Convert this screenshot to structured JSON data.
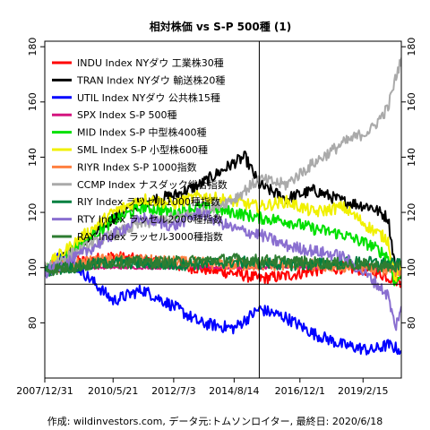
{
  "chart_data": {
    "type": "line",
    "title": "相対株価 vs S-P 500種 (1)",
    "caption": "作成: wildinvestors.com, データ元:トムソンロイター, 最終日: 2020/6/18",
    "x_tick_labels": [
      "2007/12/31",
      "2010/5/21",
      "2012/7/3",
      "2014/8/14",
      "2016/12/1",
      "2019/2/15"
    ],
    "x_tick_dates": [
      "2007-12-31",
      "2010-05-21",
      "2012-07-03",
      "2014-08-14",
      "2016-12-01",
      "2019-02-15"
    ],
    "x_range": [
      "2007-12-31",
      "2020-06-18"
    ],
    "ylim": [
      60,
      182
    ],
    "y_ticks": [
      80,
      100,
      120,
      140,
      160,
      180
    ],
    "hline": 94,
    "vline": "2015-07-01",
    "legend": "top-left",
    "series": [
      {
        "name": "INDU Index NYダウ 工業株30種",
        "color": "#ff0000",
        "points": [
          [
            "2007-12-31",
            98
          ],
          [
            "2009-03-01",
            102
          ],
          [
            "2010-05-21",
            104
          ],
          [
            "2012-07-03",
            101
          ],
          [
            "2014-08-14",
            98
          ],
          [
            "2015-07-01",
            96
          ],
          [
            "2016-06-01",
            97
          ],
          [
            "2017-06-01",
            99
          ],
          [
            "2018-06-01",
            100
          ],
          [
            "2019-06-01",
            99
          ],
          [
            "2020-03-01",
            96
          ],
          [
            "2020-06-18",
            95
          ]
        ]
      },
      {
        "name": "TRAN Index NYダウ 輸送株20種",
        "color": "#000000",
        "points": [
          [
            "2007-12-31",
            99
          ],
          [
            "2009-03-01",
            107
          ],
          [
            "2010-05-21",
            118
          ],
          [
            "2011-06-01",
            124
          ],
          [
            "2012-07-03",
            126
          ],
          [
            "2013-06-01",
            130
          ],
          [
            "2014-08-14",
            138
          ],
          [
            "2015-01-01",
            140
          ],
          [
            "2015-07-01",
            130
          ],
          [
            "2016-06-01",
            125
          ],
          [
            "2017-06-01",
            128
          ],
          [
            "2018-06-01",
            124
          ],
          [
            "2019-06-01",
            122
          ],
          [
            "2020-01-01",
            118
          ],
          [
            "2020-04-01",
            100
          ],
          [
            "2020-06-18",
            98
          ]
        ]
      },
      {
        "name": "UTIL Index NYダウ 公共株15種",
        "color": "#0000ff",
        "points": [
          [
            "2007-12-31",
            98
          ],
          [
            "2008-08-01",
            105
          ],
          [
            "2009-03-01",
            100
          ],
          [
            "2010-05-21",
            88
          ],
          [
            "2011-06-01",
            92
          ],
          [
            "2012-07-03",
            86
          ],
          [
            "2013-06-01",
            80
          ],
          [
            "2014-08-14",
            78
          ],
          [
            "2015-07-01",
            85
          ],
          [
            "2016-06-01",
            82
          ],
          [
            "2017-06-01",
            76
          ],
          [
            "2018-06-01",
            72
          ],
          [
            "2019-06-01",
            70
          ],
          [
            "2020-01-01",
            72
          ],
          [
            "2020-06-18",
            70
          ]
        ]
      },
      {
        "name": "SPX Index S-P 500種",
        "color": "#d4157f",
        "points": [
          [
            "2007-12-31",
            100
          ],
          [
            "2020-06-18",
            100
          ]
        ]
      },
      {
        "name": "MID Index S-P 中型株400種",
        "color": "#00e000",
        "points": [
          [
            "2007-12-31",
            99
          ],
          [
            "2009-03-01",
            108
          ],
          [
            "2010-05-21",
            117
          ],
          [
            "2011-06-01",
            122
          ],
          [
            "2012-07-03",
            120
          ],
          [
            "2013-06-01",
            122
          ],
          [
            "2014-08-14",
            120
          ],
          [
            "2015-07-01",
            118
          ],
          [
            "2016-06-01",
            117
          ],
          [
            "2017-06-01",
            114
          ],
          [
            "2018-06-01",
            112
          ],
          [
            "2019-06-01",
            108
          ],
          [
            "2020-01-01",
            104
          ],
          [
            "2020-04-01",
            94
          ],
          [
            "2020-06-18",
            98
          ]
        ]
      },
      {
        "name": "SML Index S-P 小型株600種",
        "color": "#f0f000",
        "points": [
          [
            "2007-12-31",
            100
          ],
          [
            "2009-03-01",
            110
          ],
          [
            "2010-05-21",
            120
          ],
          [
            "2011-06-01",
            125
          ],
          [
            "2012-07-03",
            123
          ],
          [
            "2013-06-01",
            126
          ],
          [
            "2014-08-14",
            124
          ],
          [
            "2015-07-01",
            122
          ],
          [
            "2016-06-01",
            124
          ],
          [
            "2017-06-01",
            120
          ],
          [
            "2018-06-01",
            122
          ],
          [
            "2019-06-01",
            114
          ],
          [
            "2020-01-01",
            110
          ],
          [
            "2020-04-01",
            96
          ],
          [
            "2020-06-18",
            100
          ]
        ]
      },
      {
        "name": "RIYR Index S-P 1000指数",
        "color": "#ff8040",
        "points": [
          [
            "2007-12-31",
            100
          ],
          [
            "2010-05-21",
            103
          ],
          [
            "2012-07-03",
            102
          ],
          [
            "2014-08-14",
            101
          ],
          [
            "2016-12-01",
            101
          ],
          [
            "2019-02-15",
            100
          ],
          [
            "2020-06-18",
            99
          ]
        ]
      },
      {
        "name": "CCMP Index ナスダック総合指数",
        "color": "#aaaaaa",
        "points": [
          [
            "2007-12-31",
            100
          ],
          [
            "2009-03-01",
            106
          ],
          [
            "2010-05-21",
            112
          ],
          [
            "2011-06-01",
            116
          ],
          [
            "2012-07-03",
            118
          ],
          [
            "2013-06-01",
            120
          ],
          [
            "2014-08-14",
            125
          ],
          [
            "2015-07-01",
            132
          ],
          [
            "2016-06-01",
            130
          ],
          [
            "2017-06-01",
            138
          ],
          [
            "2018-06-01",
            145
          ],
          [
            "2019-06-01",
            150
          ],
          [
            "2020-01-01",
            158
          ],
          [
            "2020-04-01",
            168
          ],
          [
            "2020-06-18",
            176
          ]
        ]
      },
      {
        "name": "RIY Index ラッセル1000種指数",
        "color": "#008040",
        "points": [
          [
            "2007-12-31",
            99
          ],
          [
            "2010-05-21",
            102
          ],
          [
            "2012-07-03",
            101
          ],
          [
            "2014-08-14",
            102
          ],
          [
            "2016-12-01",
            101
          ],
          [
            "2019-02-15",
            102
          ],
          [
            "2020-06-18",
            101
          ]
        ]
      },
      {
        "name": "RTY Index ラッセル2000種指数",
        "color": "#8a6fd0",
        "points": [
          [
            "2007-12-31",
            98
          ],
          [
            "2009-03-01",
            104
          ],
          [
            "2010-05-21",
            112
          ],
          [
            "2011-06-01",
            118
          ],
          [
            "2012-07-03",
            115
          ],
          [
            "2013-06-01",
            120
          ],
          [
            "2014-08-14",
            114
          ],
          [
            "2015-07-01",
            112
          ],
          [
            "2016-06-01",
            108
          ],
          [
            "2017-06-01",
            106
          ],
          [
            "2018-06-01",
            104
          ],
          [
            "2019-06-01",
            96
          ],
          [
            "2020-01-01",
            90
          ],
          [
            "2020-04-01",
            78
          ],
          [
            "2020-06-18",
            86
          ]
        ]
      },
      {
        "name": "RAY Index ラッセル3000種指数",
        "color": "#2e7d32",
        "points": [
          [
            "2007-12-31",
            99
          ],
          [
            "2010-05-21",
            102
          ],
          [
            "2012-07-03",
            102
          ],
          [
            "2014-08-14",
            103
          ],
          [
            "2016-12-01",
            102
          ],
          [
            "2019-02-15",
            101
          ],
          [
            "2020-06-18",
            100
          ]
        ]
      }
    ]
  }
}
